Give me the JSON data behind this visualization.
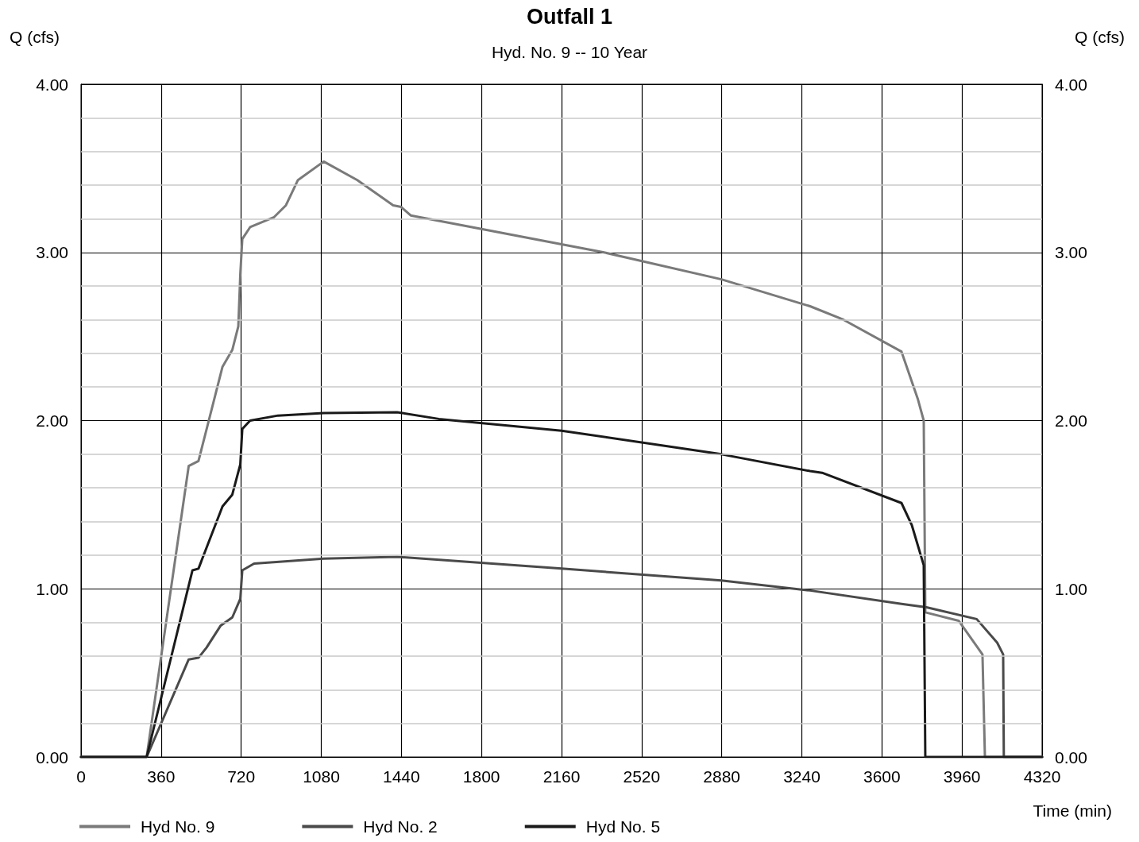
{
  "chart_data": {
    "type": "line",
    "title": "Outfall 1",
    "subtitle": "Hyd. No. 9 -- 10 Year",
    "xlabel": "Time (min)",
    "ylabel": "Q (cfs)",
    "y2label": "Q (cfs)",
    "xlim": [
      0,
      4320
    ],
    "xticks": [
      0,
      360,
      720,
      1080,
      1440,
      1800,
      2160,
      2520,
      2880,
      3240,
      3600,
      3960,
      4320
    ],
    "ylim": [
      0,
      4
    ],
    "yticks": [
      {
        "value": 0,
        "label": "0.00"
      },
      {
        "value": 0.2,
        "label": null
      },
      {
        "value": 0.4,
        "label": null
      },
      {
        "value": 0.6,
        "label": null
      },
      {
        "value": 0.8,
        "label": null
      },
      {
        "value": 1,
        "label": "1.00"
      },
      {
        "value": 1.2,
        "label": null
      },
      {
        "value": 1.4,
        "label": null
      },
      {
        "value": 1.6,
        "label": null
      },
      {
        "value": 1.8,
        "label": null
      },
      {
        "value": 2,
        "label": "2.00"
      },
      {
        "value": 2.2,
        "label": null
      },
      {
        "value": 2.4,
        "label": null
      },
      {
        "value": 2.6,
        "label": null
      },
      {
        "value": 2.8,
        "label": null
      },
      {
        "value": 3,
        "label": "3.00"
      },
      {
        "value": 3.2,
        "label": null
      },
      {
        "value": 3.4,
        "label": null
      },
      {
        "value": 3.6,
        "label": null
      },
      {
        "value": 3.8,
        "label": null
      },
      {
        "value": 4,
        "label": "4.00"
      }
    ],
    "y2lim": [
      0,
      4
    ],
    "y2ticks": [
      {
        "value": 0,
        "label": "0.00"
      },
      {
        "value": 1,
        "label": "1.00"
      },
      {
        "value": 2,
        "label": "2.00"
      },
      {
        "value": 3,
        "label": "3.00"
      },
      {
        "value": 4,
        "label": "4.00"
      }
    ],
    "grid": true,
    "legend": "bottom left",
    "marker": "none",
    "line_style": "solid",
    "series": [
      {
        "name": "Hyd No. 9",
        "color": "#7a7a7a",
        "x": [
          0,
          295,
          484,
          528,
          636,
          680,
          707,
          716,
          725,
          760,
          868,
          921,
          975,
          1091,
          1242,
          1403,
          1439,
          1482,
          2351,
          2878,
          3277,
          3427,
          3688,
          3761,
          3788,
          3795,
          3945,
          4052,
          4063,
          4320
        ],
        "values": [
          0,
          0,
          1.73,
          1.76,
          2.32,
          2.42,
          2.56,
          2.87,
          3.08,
          3.15,
          3.21,
          3.28,
          3.43,
          3.54,
          3.43,
          3.28,
          3.27,
          3.22,
          3.0,
          2.84,
          2.68,
          2.6,
          2.41,
          2.13,
          2.0,
          0.86,
          0.81,
          0.61,
          0,
          0
        ]
      },
      {
        "name": "Hyd No. 2",
        "color": "#4a4a4a",
        "x": [
          0,
          295,
          484,
          528,
          564,
          627,
          680,
          716,
          725,
          778,
          1091,
          1421,
          2160,
          2878,
          3277,
          3688,
          3800,
          4026,
          4118,
          4145,
          4148,
          4320
        ],
        "values": [
          0,
          0,
          0.58,
          0.59,
          0.65,
          0.78,
          0.83,
          0.94,
          1.11,
          1.15,
          1.18,
          1.19,
          1.12,
          1.05,
          0.99,
          0.91,
          0.89,
          0.82,
          0.68,
          0.61,
          0,
          0
        ]
      },
      {
        "name": "Hyd No. 5",
        "color": "#1a1a1a",
        "x": [
          0,
          295,
          501,
          528,
          636,
          680,
          716,
          725,
          760,
          885,
          1091,
          1421,
          1608,
          2160,
          2878,
          3277,
          3331,
          3688,
          3734,
          3788,
          3795,
          4320
        ],
        "values": [
          0,
          0,
          1.11,
          1.12,
          1.49,
          1.56,
          1.74,
          1.95,
          2.0,
          2.03,
          2.045,
          2.05,
          2.01,
          1.94,
          1.8,
          1.7,
          1.69,
          1.51,
          1.38,
          1.14,
          0,
          0
        ]
      }
    ]
  }
}
